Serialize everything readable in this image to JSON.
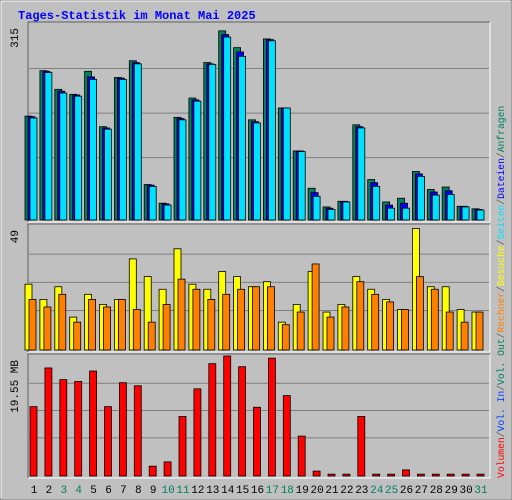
{
  "chart_data": [
    {
      "type": "bar",
      "title": "Tages-Statistik im Monat Mai 2025",
      "legend_separator": "/",
      "ylim": [
        0,
        315
      ],
      "yticks": [
        315
      ],
      "series": [
        {
          "name": "Anfragen",
          "color": "#00805c",
          "values": [
            167,
            240,
            210,
            202,
            239,
            150,
            229,
            256,
            57,
            27,
            165,
            196,
            253,
            304,
            277,
            161,
            291,
            180,
            111,
            51,
            21,
            30,
            153,
            65,
            29,
            35,
            78,
            49,
            53,
            22,
            18
          ]
        },
        {
          "name": "Dateien",
          "color": "#0000ff",
          "values": [
            166,
            239,
            207,
            201,
            230,
            148,
            228,
            253,
            56,
            26,
            163,
            193,
            251,
            298,
            270,
            158,
            290,
            180,
            111,
            44,
            19,
            30,
            150,
            60,
            24,
            27,
            74,
            45,
            47,
            22,
            17
          ]
        },
        {
          "name": "Seiten",
          "color": "#00e0ff",
          "values": [
            164,
            237,
            204,
            199,
            226,
            146,
            226,
            251,
            54,
            24,
            161,
            191,
            250,
            294,
            263,
            156,
            288,
            180,
            110,
            38,
            17,
            29,
            148,
            54,
            19,
            19,
            70,
            40,
            41,
            21,
            16
          ]
        }
      ]
    },
    {
      "type": "bar",
      "ylim": [
        0,
        49
      ],
      "yticks": [
        49
      ],
      "series": [
        {
          "name": "Besuche",
          "color": "#ffff00",
          "values": [
            26,
            20,
            25,
            13,
            22,
            18,
            20,
            36,
            29,
            24,
            40,
            26,
            24,
            31,
            29,
            25,
            27,
            11,
            18,
            31,
            15,
            18,
            29,
            24,
            20,
            16,
            48,
            25,
            25,
            16,
            15
          ]
        },
        {
          "name": "Rechner",
          "color": "#ff8000",
          "values": [
            20,
            17,
            22,
            11,
            20,
            17,
            20,
            16,
            11,
            18,
            28,
            24,
            20,
            22,
            24,
            25,
            25,
            10,
            15,
            34,
            13,
            17,
            27,
            22,
            19,
            16,
            29,
            24,
            15,
            11,
            15
          ]
        }
      ]
    },
    {
      "type": "bar",
      "ylim": [
        0,
        19.55
      ],
      "yticks": [
        {
          "value": 19.55,
          "label": "19.55 MB"
        }
      ],
      "categories": [
        "1",
        "2",
        "3",
        "4",
        "5",
        "6",
        "7",
        "8",
        "9",
        "10",
        "11",
        "12",
        "13",
        "14",
        "15",
        "16",
        "17",
        "18",
        "19",
        "20",
        "21",
        "22",
        "23",
        "24",
        "25",
        "26",
        "27",
        "28",
        "29",
        "30",
        "31"
      ],
      "category_colors": [
        "#000000",
        "#000000",
        "#00805c",
        "#00805c",
        "#000000",
        "#000000",
        "#000000",
        "#000000",
        "#000000",
        "#00805c",
        "#00805c",
        "#000000",
        "#000000",
        "#000000",
        "#000000",
        "#000000",
        "#00805c",
        "#00805c",
        "#000000",
        "#000000",
        "#000000",
        "#000000",
        "#000000",
        "#00805c",
        "#00805c",
        "#000000",
        "#000000",
        "#000000",
        "#000000",
        "#000000",
        "#00805c"
      ],
      "series": [
        {
          "name": "Volumen",
          "color": "#ff0000",
          "values": [
            11.3,
            17.6,
            15.7,
            15.4,
            17.1,
            11.3,
            15.2,
            14.7,
            1.6,
            2.3,
            9.7,
            14.2,
            18.3,
            19.55,
            17.8,
            11.2,
            19.2,
            13.1,
            6.5,
            0.8,
            0.3,
            0.3,
            9.7,
            0.3,
            0.3,
            1.0,
            0.3,
            0.3,
            0.3,
            0.3,
            0.3
          ]
        }
      ],
      "legend_extra": [
        {
          "name": "Vol. In",
          "color": "#0040ff"
        },
        {
          "name": "Vol. Out",
          "color": "#00805c"
        }
      ]
    }
  ]
}
